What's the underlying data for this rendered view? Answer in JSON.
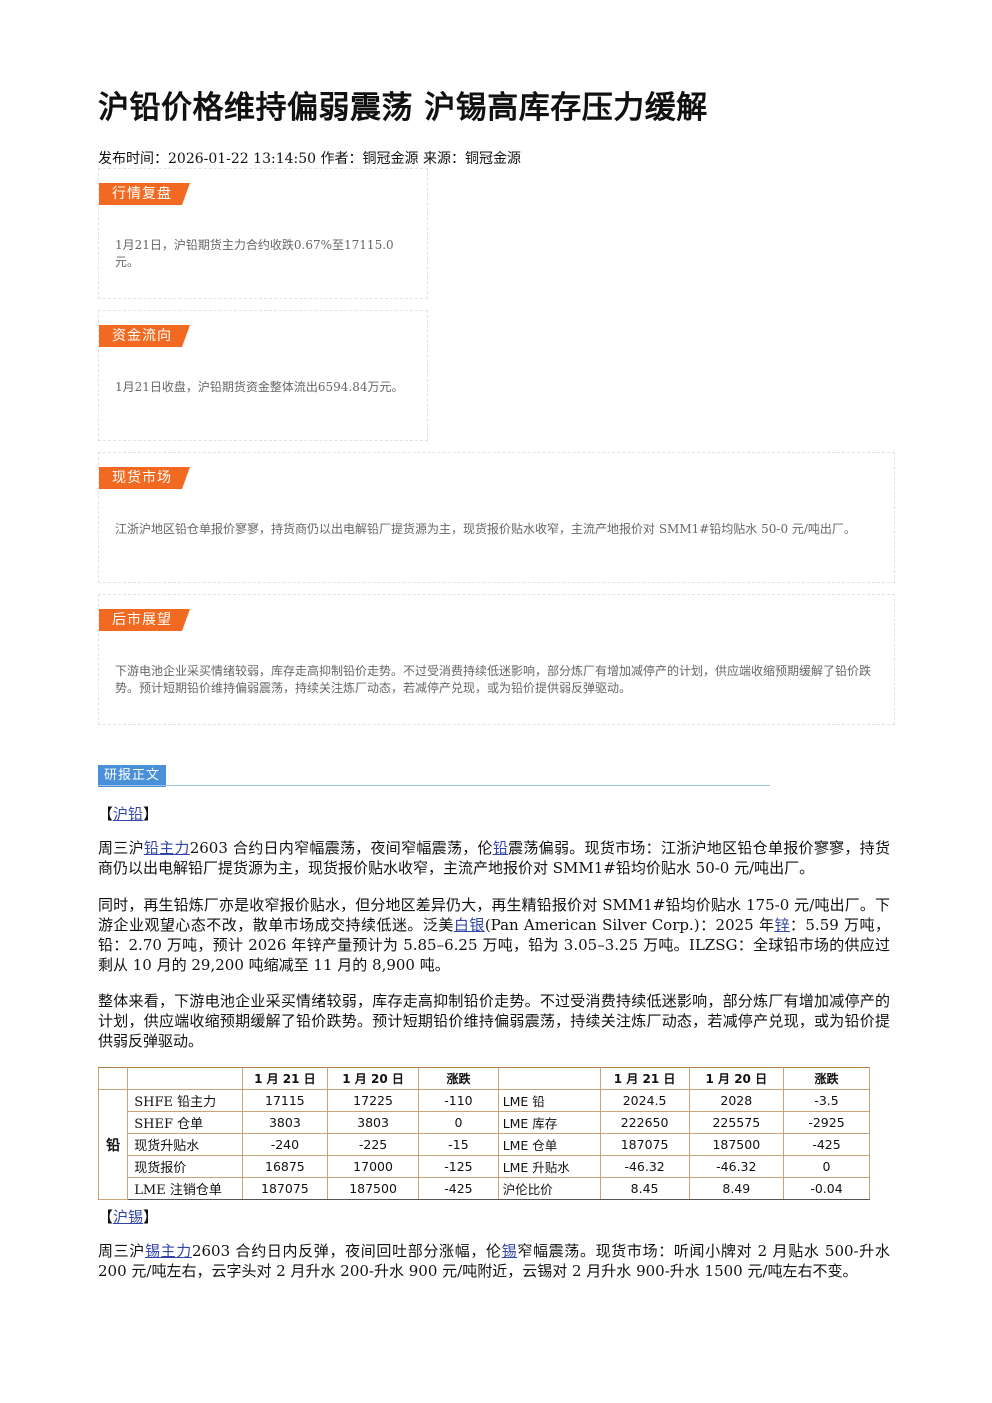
{
  "article": {
    "title": "沪铅价格维持偏弱震荡 沪锡高库存压力缓解",
    "meta": "发布时间：2026-01-22 13:14:50 作者：铜冠金源 来源：铜冠金源"
  },
  "boxes": [
    {
      "tag": "行情复盘",
      "text": "1月21日，沪铅期货主力合约收跌0.67%至17115.0元。"
    },
    {
      "tag": "资金流向",
      "text": "1月21日收盘，沪铅期货资金整体流出6594.84万元。"
    },
    {
      "tag": "现货市场",
      "text": "江浙沪地区铅仓单报价寥寥，持货商仍以出电解铅厂提货源为主，现货报价贴水收窄，主流产地报价对 SMM1#铅均贴水 50-0 元/吨出厂。"
    },
    {
      "tag": "后市展望",
      "text": "下游电池企业采买情绪较弱，库存走高抑制铅价走势。不过受消费持续低迷影响，部分炼厂有增加减停产的计划，供应端收缩预期缓解了铅价跌势。预计短期铅价维持偏弱震荡，持续关注炼厂动态，若减停产兑现，或为铅价提供弱反弹驱动。"
    }
  ],
  "report": {
    "tag": "研报正文",
    "lead_section": {
      "open": "【",
      "link": "沪铅",
      "close": "】"
    },
    "p1": {
      "a": "周三沪",
      "link1": "铅主力",
      "b": "2603 合约日内窄幅震荡，夜间窄幅震荡，伦",
      "link2": "铅",
      "c": "震荡偏弱。现货市场：江浙沪地区铅仓单报价寥寥，持货商仍以出电解铅厂提货源为主，现货报价贴水收窄，主流产地报价对 SMM1#铅均价贴水 50-0 元/吨出厂。"
    },
    "p2": {
      "a": "同时，再生铅炼厂亦是收窄报价贴水，但分地区差异仍大，再生精铅报价对 SMM1#铅均价贴水 175-0 元/吨出厂。下游企业观望心态不改，散单市场成交持续低迷。泛美",
      "link1": "白银",
      "b": "(Pan American Silver Corp.)：2025 年",
      "link2": "锌",
      "c": "：5.59 万吨，铅：2.70 万吨，预计 2026 年锌产量预计为 5.85–6.25 万吨，铅为 3.05–3.25 万吨。ILZSG：全球铅市场的供应过剩从 10 月的 29,200 吨缩减至 11 月的 8,900 吨。"
    },
    "p3": "整体来看，下游电池企业采买情绪较弱，库存走高抑制铅价走势。不过受消费持续低迷影响，部分炼厂有增加减停产的计划，供应端收缩预期缓解了铅价跌势。预计短期铅价维持偏弱震荡，持续关注炼厂动态，若减停产兑现，或为铅价提供弱反弹驱动。",
    "tin_section": {
      "open": "【",
      "link": "沪锡",
      "close": "】"
    },
    "p4": {
      "a": "周三沪",
      "link1": "锡主力",
      "b": "2603 合约日内反弹，夜间回吐部分涨幅，伦",
      "link2": "锡",
      "c": "窄幅震荡。现货市场：听闻小牌对 2 月贴水 500-升水 200 元/吨左右，云字头对 2 月升水 200-升水 900 元/吨附近，云锡对 2 月升水 900-升水 1500 元/吨左右不变。"
    }
  },
  "table": {
    "headers": [
      "",
      "",
      "1 月 21 日",
      "1 月 20 日",
      "涨跌",
      "",
      "1 月 21 日",
      "1 月 20 日",
      "涨跌"
    ],
    "category": "铅",
    "rows": [
      [
        "SHFE 铅主力",
        "17115",
        "17225",
        "-110",
        "LME 铅",
        "2024.5",
        "2028",
        "-3.5"
      ],
      [
        "SHEF 仓单",
        "3803",
        "3803",
        "0",
        "LME 库存",
        "222650",
        "225575",
        "-2925"
      ],
      [
        "现货升贴水",
        "-240",
        "-225",
        "-15",
        "LME 仓单",
        "187075",
        "187500",
        "-425"
      ],
      [
        "现货报价",
        "16875",
        "17000",
        "-125",
        "LME 升贴水",
        "-46.32",
        "-46.32",
        "0"
      ],
      [
        "LME 注销仓单",
        "187075",
        "187500",
        "-425",
        "沪伦比价",
        "8.45",
        "8.49",
        "-0.04"
      ]
    ]
  }
}
